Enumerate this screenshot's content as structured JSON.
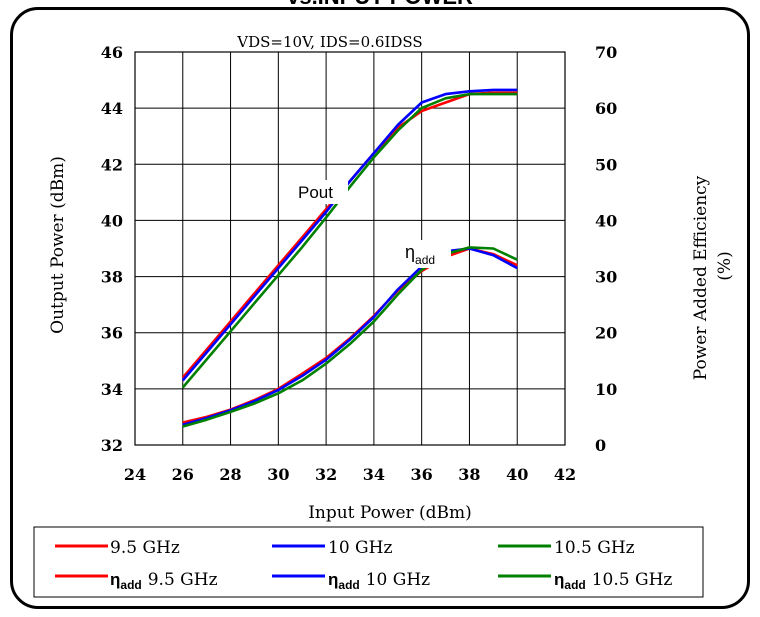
{
  "title": "vs.INPUT POWER",
  "condition": "VDS=10V,  IDS=0.6IDSS",
  "colors": {
    "9.5": "#ff0000",
    "10": "#0000ff",
    "10.5": "#008000"
  },
  "chart_data": {
    "type": "line",
    "xlabel": "Input Power (dBm)",
    "ylabel_left": "Output Power (dBm)",
    "ylabel_right_line1": "Power Added Efficiency",
    "ylabel_right_line2": "(%)",
    "xlim": [
      24,
      42
    ],
    "ylim_left": [
      32,
      46
    ],
    "ylim_right": [
      0,
      70
    ],
    "x_ticks": [
      24,
      26,
      28,
      30,
      32,
      34,
      36,
      38,
      40,
      42
    ],
    "y_left_ticks": [
      32,
      34,
      36,
      38,
      40,
      42,
      44,
      46
    ],
    "y_right_ticks": [
      0,
      10,
      20,
      30,
      40,
      50,
      60,
      70
    ],
    "annotations": {
      "pout": "Pout",
      "eta": "η",
      "eta_sub": "add"
    },
    "legend": {
      "row1": [
        "9.5 GHz",
        "10 GHz",
        "10.5 GHz"
      ],
      "eta_symbol": "η",
      "eta_sub": "add",
      "row2": [
        "9.5 GHz",
        "10 GHz",
        "10.5 GHz"
      ]
    },
    "series": [
      {
        "name": "9.5 GHz",
        "axis": "left",
        "color": "#ff0000",
        "x": [
          26,
          27,
          28,
          29,
          30,
          31,
          32,
          33,
          34,
          35,
          36,
          37,
          38,
          39,
          40
        ],
        "y": [
          34.4,
          35.4,
          36.4,
          37.4,
          38.4,
          39.4,
          40.4,
          41.4,
          42.4,
          43.3,
          43.9,
          44.2,
          44.5,
          44.55,
          44.55
        ]
      },
      {
        "name": "10 GHz",
        "axis": "left",
        "color": "#0000ff",
        "x": [
          26,
          27,
          28,
          29,
          30,
          31,
          32,
          33,
          34,
          35,
          36,
          37,
          38,
          39,
          40
        ],
        "y": [
          34.3,
          35.3,
          36.3,
          37.3,
          38.3,
          39.3,
          40.3,
          41.4,
          42.4,
          43.4,
          44.2,
          44.5,
          44.6,
          44.65,
          44.65
        ]
      },
      {
        "name": "10.5 GHz",
        "axis": "left",
        "color": "#008000",
        "x": [
          26,
          27,
          28,
          29,
          30,
          31,
          32,
          33,
          34,
          35,
          36,
          37,
          38,
          39,
          40
        ],
        "y": [
          34.05,
          35.05,
          36.05,
          37.05,
          38.05,
          39.05,
          40.1,
          41.2,
          42.25,
          43.2,
          44.0,
          44.35,
          44.5,
          44.5,
          44.5
        ]
      },
      {
        "name": "ηadd 9.5 GHz",
        "axis": "right",
        "color": "#ff0000",
        "x": [
          26,
          27,
          28,
          29,
          30,
          31,
          32,
          33,
          34,
          35,
          36,
          37,
          38,
          39,
          40
        ],
        "y": [
          4.0,
          5.0,
          6.3,
          8.0,
          10.0,
          12.7,
          15.5,
          19.0,
          23.0,
          27.5,
          31.0,
          33.5,
          35.0,
          34.0,
          32.0
        ]
      },
      {
        "name": "ηadd 10 GHz",
        "axis": "right",
        "color": "#0000ff",
        "x": [
          26,
          27,
          28,
          29,
          30,
          31,
          32,
          33,
          34,
          35,
          36,
          37,
          38,
          39,
          40
        ],
        "y": [
          3.6,
          4.8,
          6.2,
          7.8,
          9.8,
          12.3,
          15.2,
          18.8,
          22.8,
          27.7,
          31.8,
          34.5,
          35.0,
          33.8,
          31.5
        ]
      },
      {
        "name": "ηadd 10.5 GHz",
        "axis": "right",
        "color": "#008000",
        "x": [
          26,
          27,
          28,
          29,
          30,
          31,
          32,
          33,
          34,
          35,
          36,
          37,
          38,
          39,
          40
        ],
        "y": [
          3.3,
          4.5,
          5.9,
          7.4,
          9.2,
          11.5,
          14.5,
          18.0,
          22.0,
          26.8,
          31.2,
          34.0,
          35.2,
          35.0,
          33.0
        ]
      }
    ]
  }
}
